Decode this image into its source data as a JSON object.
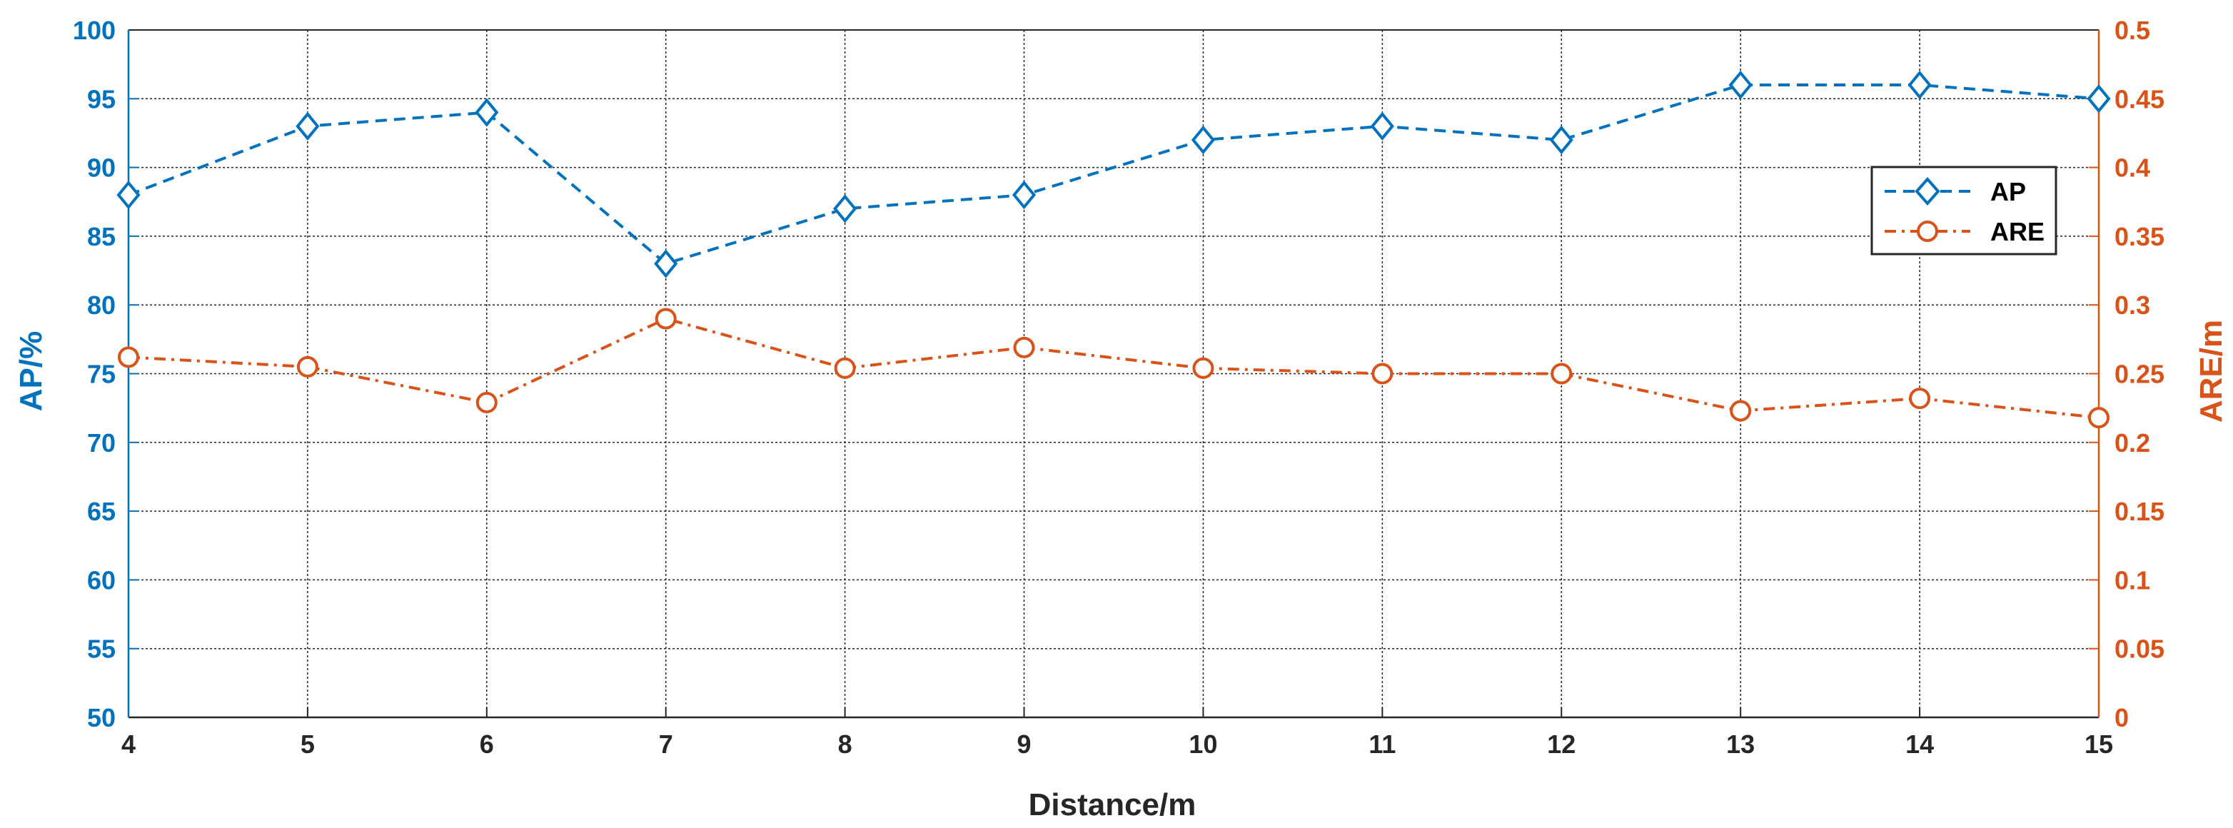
{
  "chart_data": {
    "type": "line",
    "x": [
      4,
      5,
      6,
      7,
      8,
      9,
      10,
      11,
      12,
      13,
      14,
      15
    ],
    "xlabel": "Distance/m",
    "xlim": [
      4,
      15
    ],
    "xticks": [
      4,
      5,
      6,
      7,
      8,
      9,
      10,
      11,
      12,
      13,
      14,
      15
    ],
    "ylabel_left": "AP/%",
    "ylim_left": [
      50,
      100
    ],
    "yticks_left": [
      "50",
      "55",
      "60",
      "65",
      "70",
      "75",
      "80",
      "85",
      "90",
      "95",
      "100"
    ],
    "ylabel_right": "ARE/m",
    "ylim_right": [
      0,
      0.5
    ],
    "yticks_right": [
      "0",
      "0.05",
      "0.1",
      "0.15",
      "0.2",
      "0.25",
      "0.3",
      "0.35",
      "0.4",
      "0.45",
      "0.5"
    ],
    "grid": true,
    "legend_position": "top-right",
    "series": [
      {
        "name": "AP",
        "axis": "left",
        "marker": "diamond",
        "line_style": "dashed",
        "color": "#0072BD",
        "values": [
          88,
          93,
          94,
          83,
          87,
          88,
          92,
          93,
          92,
          96,
          96,
          95
        ]
      },
      {
        "name": "ARE",
        "axis": "right",
        "marker": "circle",
        "line_style": "dash-dot",
        "color": "#D95319",
        "values": [
          0.262,
          0.255,
          0.229,
          0.29,
          0.254,
          0.269,
          0.254,
          0.25,
          0.25,
          0.223,
          0.232,
          0.218
        ]
      }
    ]
  }
}
